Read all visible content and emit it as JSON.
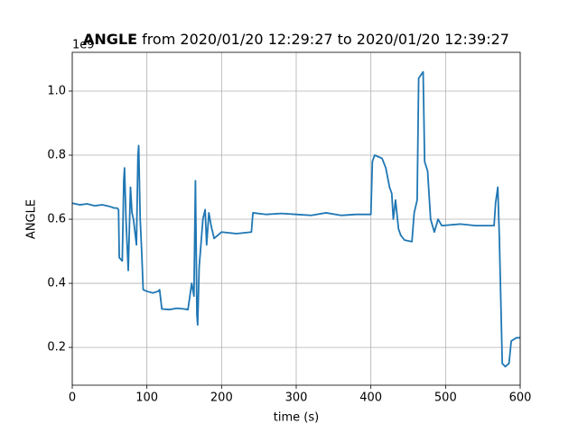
{
  "chart_data": {
    "type": "line",
    "title": "ANGLE",
    "title_suffix": "from 2020/01/20 12:29:27 to 2020/01/20 12:39:27",
    "offset_text": "1e9",
    "xlabel": "time (s)",
    "ylabel": "ANGLE",
    "x": [
      0,
      10,
      20,
      30,
      40,
      50,
      56,
      60,
      62,
      63,
      67,
      69,
      70,
      72,
      75,
      78,
      80,
      82,
      86,
      88,
      89,
      91,
      93,
      95,
      100,
      108,
      115,
      117,
      120,
      130,
      140,
      150,
      155,
      160,
      163,
      165,
      167,
      168,
      170,
      175,
      178,
      180,
      183,
      186,
      190,
      195,
      200,
      220,
      240,
      242,
      260,
      280,
      300,
      320,
      340,
      360,
      380,
      400,
      402,
      405,
      415,
      420,
      425,
      428,
      430,
      433,
      437,
      440,
      445,
      455,
      458,
      462,
      464,
      470,
      472,
      476,
      480,
      485,
      490,
      495,
      520,
      540,
      565,
      567,
      570,
      572,
      576,
      580,
      585,
      588,
      595,
      600
    ],
    "series": [
      {
        "name": "ANGLE",
        "color": "#1f77b4",
        "values": [
          0.65,
          0.645,
          0.648,
          0.642,
          0.645,
          0.64,
          0.635,
          0.635,
          0.63,
          0.48,
          0.47,
          0.72,
          0.76,
          0.6,
          0.44,
          0.7,
          0.62,
          0.6,
          0.52,
          0.8,
          0.83,
          0.6,
          0.5,
          0.38,
          0.375,
          0.37,
          0.375,
          0.38,
          0.32,
          0.318,
          0.322,
          0.32,
          0.318,
          0.4,
          0.36,
          0.72,
          0.3,
          0.27,
          0.45,
          0.6,
          0.63,
          0.52,
          0.62,
          0.58,
          0.54,
          0.55,
          0.56,
          0.555,
          0.56,
          0.62,
          0.615,
          0.618,
          0.615,
          0.612,
          0.62,
          0.612,
          0.615,
          0.615,
          0.78,
          0.8,
          0.79,
          0.76,
          0.7,
          0.68,
          0.6,
          0.66,
          0.57,
          0.55,
          0.535,
          0.53,
          0.62,
          0.66,
          1.04,
          1.06,
          0.78,
          0.75,
          0.6,
          0.56,
          0.6,
          0.58,
          0.585,
          0.58,
          0.58,
          0.65,
          0.7,
          0.55,
          0.15,
          0.14,
          0.15,
          0.22,
          0.23,
          0.23
        ]
      }
    ],
    "xlim": [
      0,
      600
    ],
    "xticks": [
      0,
      100,
      200,
      300,
      400,
      500,
      600
    ],
    "ylim": [
      0.082,
      1.121
    ],
    "yticks": [
      0.2,
      0.4,
      0.6,
      0.8,
      {
        "value": 1,
        "label": "1.0"
      }
    ],
    "grid": true
  }
}
